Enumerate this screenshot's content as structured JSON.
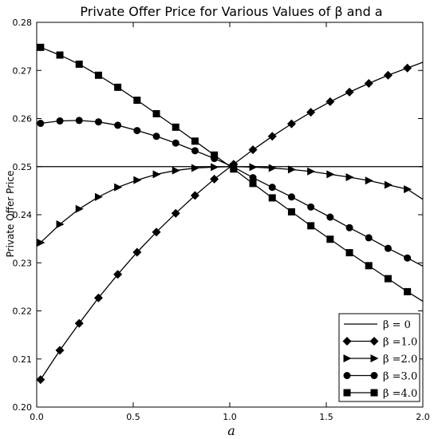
{
  "chart_data": {
    "type": "line",
    "title": "Private Offer Price for Various Values of β and a",
    "xlabel": "a",
    "ylabel": "Private Offer Price",
    "xlim": [
      0.0,
      2.0
    ],
    "ylim": [
      0.2,
      0.28
    ],
    "xticks": [
      "0.0",
      "0.5",
      "1.0",
      "1.5",
      "2.0"
    ],
    "yticks": [
      "0.20",
      "0.21",
      "0.22",
      "0.23",
      "0.24",
      "0.25",
      "0.26",
      "0.27",
      "0.28"
    ],
    "grid": false,
    "legend_position": "bottom-right",
    "x": [
      0.02,
      0.12,
      0.22,
      0.32,
      0.42,
      0.52,
      0.62,
      0.72,
      0.82,
      0.92,
      1.02,
      1.12,
      1.22,
      1.32,
      1.42,
      1.52,
      1.62,
      1.72,
      1.82,
      1.92,
      2.0
    ],
    "series": [
      {
        "name": "β = 0",
        "marker": "none",
        "values": [
          0.25,
          0.25,
          0.25,
          0.25,
          0.25,
          0.25,
          0.25,
          0.25,
          0.25,
          0.25,
          0.25,
          0.25,
          0.25,
          0.25,
          0.25,
          0.25,
          0.25,
          0.25,
          0.25,
          0.25,
          0.25
        ]
      },
      {
        "name": "β =1.0",
        "marker": "diamond",
        "values": [
          0.2057,
          0.2118,
          0.2174,
          0.2227,
          0.2276,
          0.2322,
          0.2364,
          0.2403,
          0.244,
          0.2474,
          0.2505,
          0.2535,
          0.2563,
          0.2589,
          0.2613,
          0.2635,
          0.2655,
          0.2673,
          0.269,
          0.2705,
          0.2717
        ]
      },
      {
        "name": "β =2.0",
        "marker": "triangle-right",
        "values": [
          0.2342,
          0.238,
          0.2412,
          0.2437,
          0.2457,
          0.2472,
          0.2484,
          0.2492,
          0.2497,
          0.2499,
          0.25,
          0.2499,
          0.2497,
          0.2494,
          0.249,
          0.2484,
          0.2478,
          0.2471,
          0.2462,
          0.2453,
          0.2432
        ]
      },
      {
        "name": "β =3.0",
        "marker": "circle",
        "values": [
          0.259,
          0.2595,
          0.2596,
          0.2593,
          0.2586,
          0.2575,
          0.2563,
          0.2549,
          0.2533,
          0.2517,
          0.2499,
          0.2477,
          0.2457,
          0.2437,
          0.2416,
          0.2395,
          0.2373,
          0.2352,
          0.233,
          0.231,
          0.2293
        ]
      },
      {
        "name": "β =4.0",
        "marker": "square",
        "values": [
          0.2748,
          0.2732,
          0.2713,
          0.269,
          0.2665,
          0.2638,
          0.261,
          0.2582,
          0.2553,
          0.2524,
          0.2495,
          0.2465,
          0.2435,
          0.2406,
          0.2377,
          0.2349,
          0.2321,
          0.2294,
          0.2267,
          0.224,
          0.222
        ]
      }
    ]
  }
}
